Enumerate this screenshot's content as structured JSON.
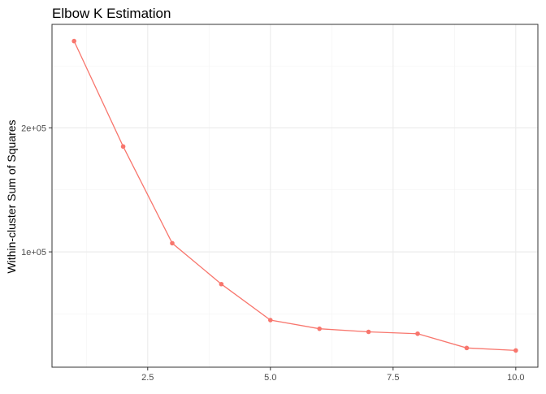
{
  "chart_data": {
    "type": "line",
    "title": "Elbow K Estimation",
    "xlabel": "",
    "ylabel": "Within-cluster Sum of Squares",
    "x": [
      1,
      2,
      3,
      4,
      5,
      6,
      7,
      8,
      9,
      10
    ],
    "series": [
      {
        "values": [
          270000,
          185000,
          107000,
          74000,
          45000,
          38000,
          35500,
          34000,
          22500,
          20500
        ],
        "color": "#F8766D"
      }
    ],
    "xlim": [
      0.55,
      10.45
    ],
    "ylim": [
      7000,
      283500
    ],
    "x_ticks": [
      2.5,
      5.0,
      7.5,
      10.0
    ],
    "x_tick_labels": [
      "2.5",
      "5.0",
      "7.5",
      "10.0"
    ],
    "y_ticks": [
      100000,
      200000
    ],
    "y_tick_labels": [
      "1e+05",
      "2e+05"
    ],
    "grid": true,
    "legend": "none"
  }
}
